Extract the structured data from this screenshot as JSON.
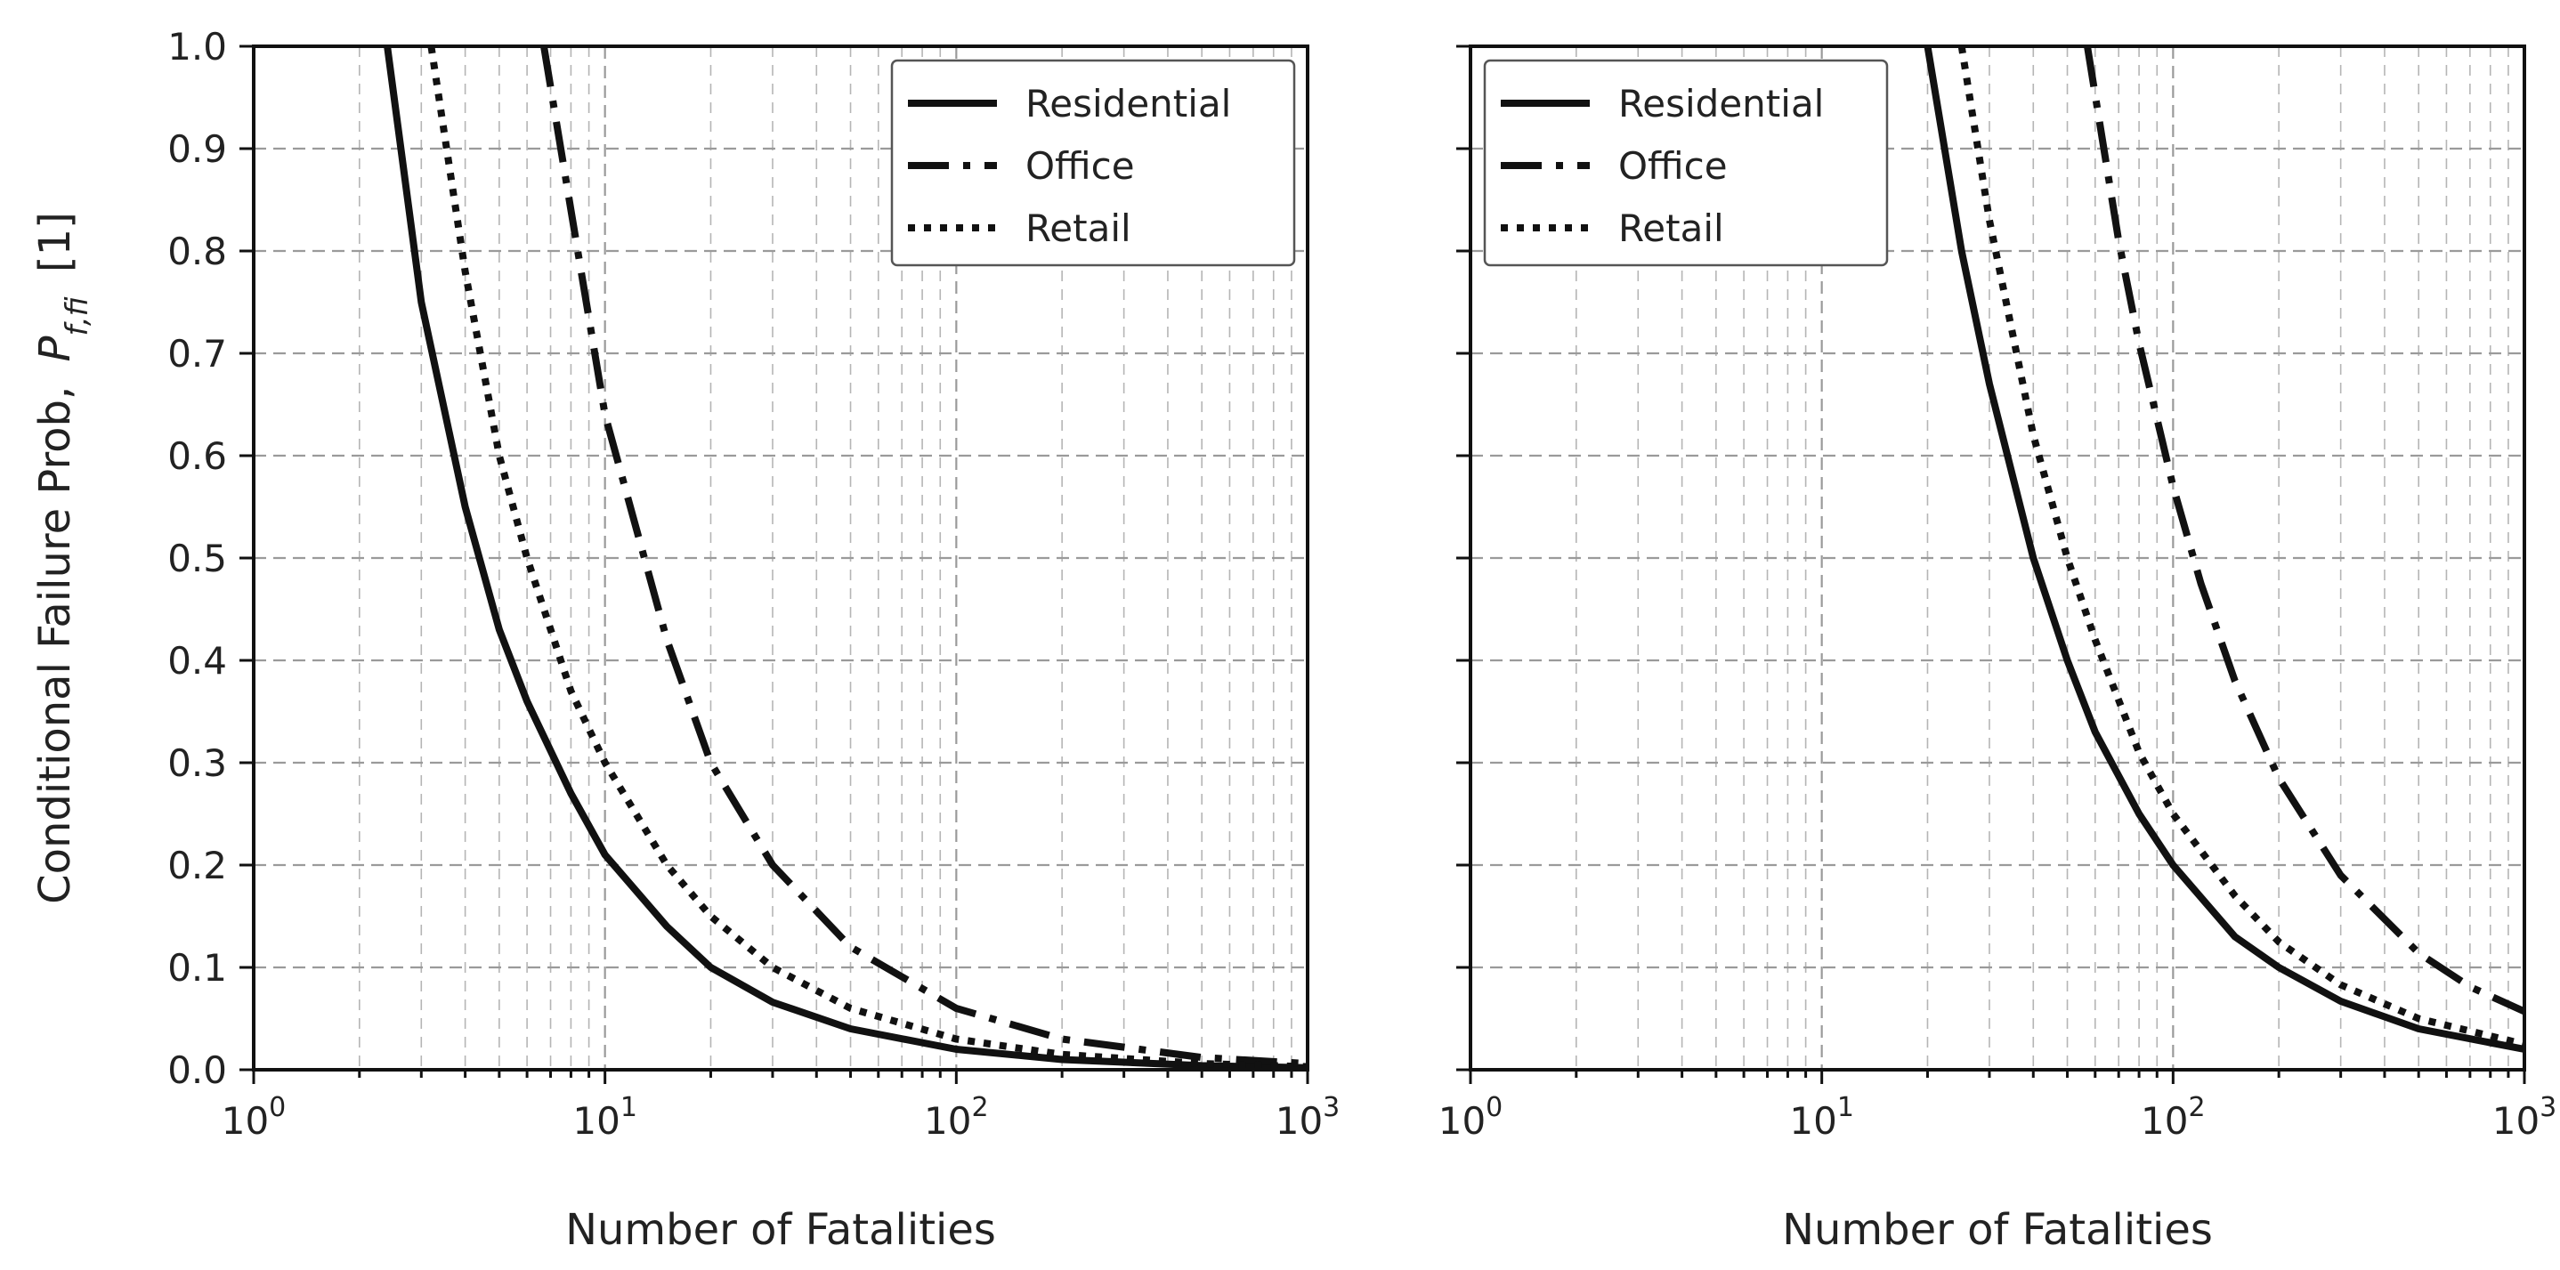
{
  "chart_data": [
    {
      "type": "line",
      "xscale": "log",
      "xlim": [
        1,
        1000
      ],
      "ylim": [
        0,
        1
      ],
      "grid": true,
      "xlabel": "Number of Fatalities",
      "ylabel": "Conditional Failure Prob,",
      "ylabel_symbol": "P",
      "ylabel_subscript": "f,fi",
      "ylabel_unit": "[1]",
      "legend_placement": "top-right",
      "x_ticks": [
        {
          "base": "10",
          "exp": "0",
          "value": 1
        },
        {
          "base": "10",
          "exp": "1",
          "value": 10
        },
        {
          "base": "10",
          "exp": "2",
          "value": 100
        },
        {
          "base": "10",
          "exp": "3",
          "value": 1000
        }
      ],
      "y_ticks": [
        "0.0",
        "0.1",
        "0.2",
        "0.3",
        "0.4",
        "0.5",
        "0.6",
        "0.7",
        "0.8",
        "0.9",
        "1.0"
      ],
      "series": [
        {
          "name": "Residential",
          "style": "solid",
          "x": [
            2.4,
            3,
            4,
            5,
            6,
            8,
            10,
            15,
            20,
            30,
            50,
            100,
            200,
            500,
            1000
          ],
          "y": [
            1.0,
            0.75,
            0.55,
            0.43,
            0.36,
            0.27,
            0.21,
            0.14,
            0.1,
            0.066,
            0.04,
            0.02,
            0.01,
            0.004,
            0.002
          ]
        },
        {
          "name": "Office",
          "style": "dashdot",
          "x": [
            6.7,
            8,
            10,
            15,
            20,
            30,
            50,
            100,
            200,
            500,
            1000
          ],
          "y": [
            1.0,
            0.84,
            0.64,
            0.42,
            0.3,
            0.2,
            0.12,
            0.06,
            0.03,
            0.012,
            0.006
          ]
        },
        {
          "name": "Retail",
          "style": "dotted",
          "x": [
            3.2,
            4,
            5,
            6,
            8,
            10,
            15,
            20,
            30,
            50,
            100,
            200,
            500,
            1000
          ],
          "y": [
            1.0,
            0.78,
            0.6,
            0.5,
            0.37,
            0.3,
            0.2,
            0.15,
            0.1,
            0.06,
            0.03,
            0.015,
            0.006,
            0.003
          ]
        }
      ]
    },
    {
      "type": "line",
      "xscale": "log",
      "xlim": [
        1,
        1000
      ],
      "ylim": [
        0,
        1
      ],
      "grid": true,
      "xlabel": "Number of Fatalities",
      "legend_placement": "top-left",
      "x_ticks": [
        {
          "base": "10",
          "exp": "0",
          "value": 1
        },
        {
          "base": "10",
          "exp": "1",
          "value": 10
        },
        {
          "base": "10",
          "exp": "2",
          "value": 100
        },
        {
          "base": "10",
          "exp": "3",
          "value": 1000
        }
      ],
      "series": [
        {
          "name": "Residential",
          "style": "solid",
          "x": [
            20,
            25,
            30,
            40,
            50,
            60,
            80,
            100,
            150,
            200,
            300,
            500,
            1000
          ],
          "y": [
            1.0,
            0.8,
            0.67,
            0.5,
            0.4,
            0.33,
            0.25,
            0.2,
            0.13,
            0.1,
            0.067,
            0.04,
            0.02
          ]
        },
        {
          "name": "Office",
          "style": "dashdot",
          "x": [
            57,
            70,
            80,
            100,
            120,
            150,
            200,
            300,
            500,
            700,
            1000
          ],
          "y": [
            1.0,
            0.81,
            0.71,
            0.57,
            0.475,
            0.38,
            0.285,
            0.19,
            0.114,
            0.081,
            0.057
          ]
        },
        {
          "name": "Retail",
          "style": "dotted",
          "x": [
            25,
            30,
            40,
            50,
            60,
            80,
            100,
            150,
            200,
            300,
            500,
            1000
          ],
          "y": [
            1.0,
            0.83,
            0.62,
            0.5,
            0.42,
            0.31,
            0.25,
            0.17,
            0.125,
            0.083,
            0.05,
            0.025
          ]
        }
      ]
    }
  ]
}
